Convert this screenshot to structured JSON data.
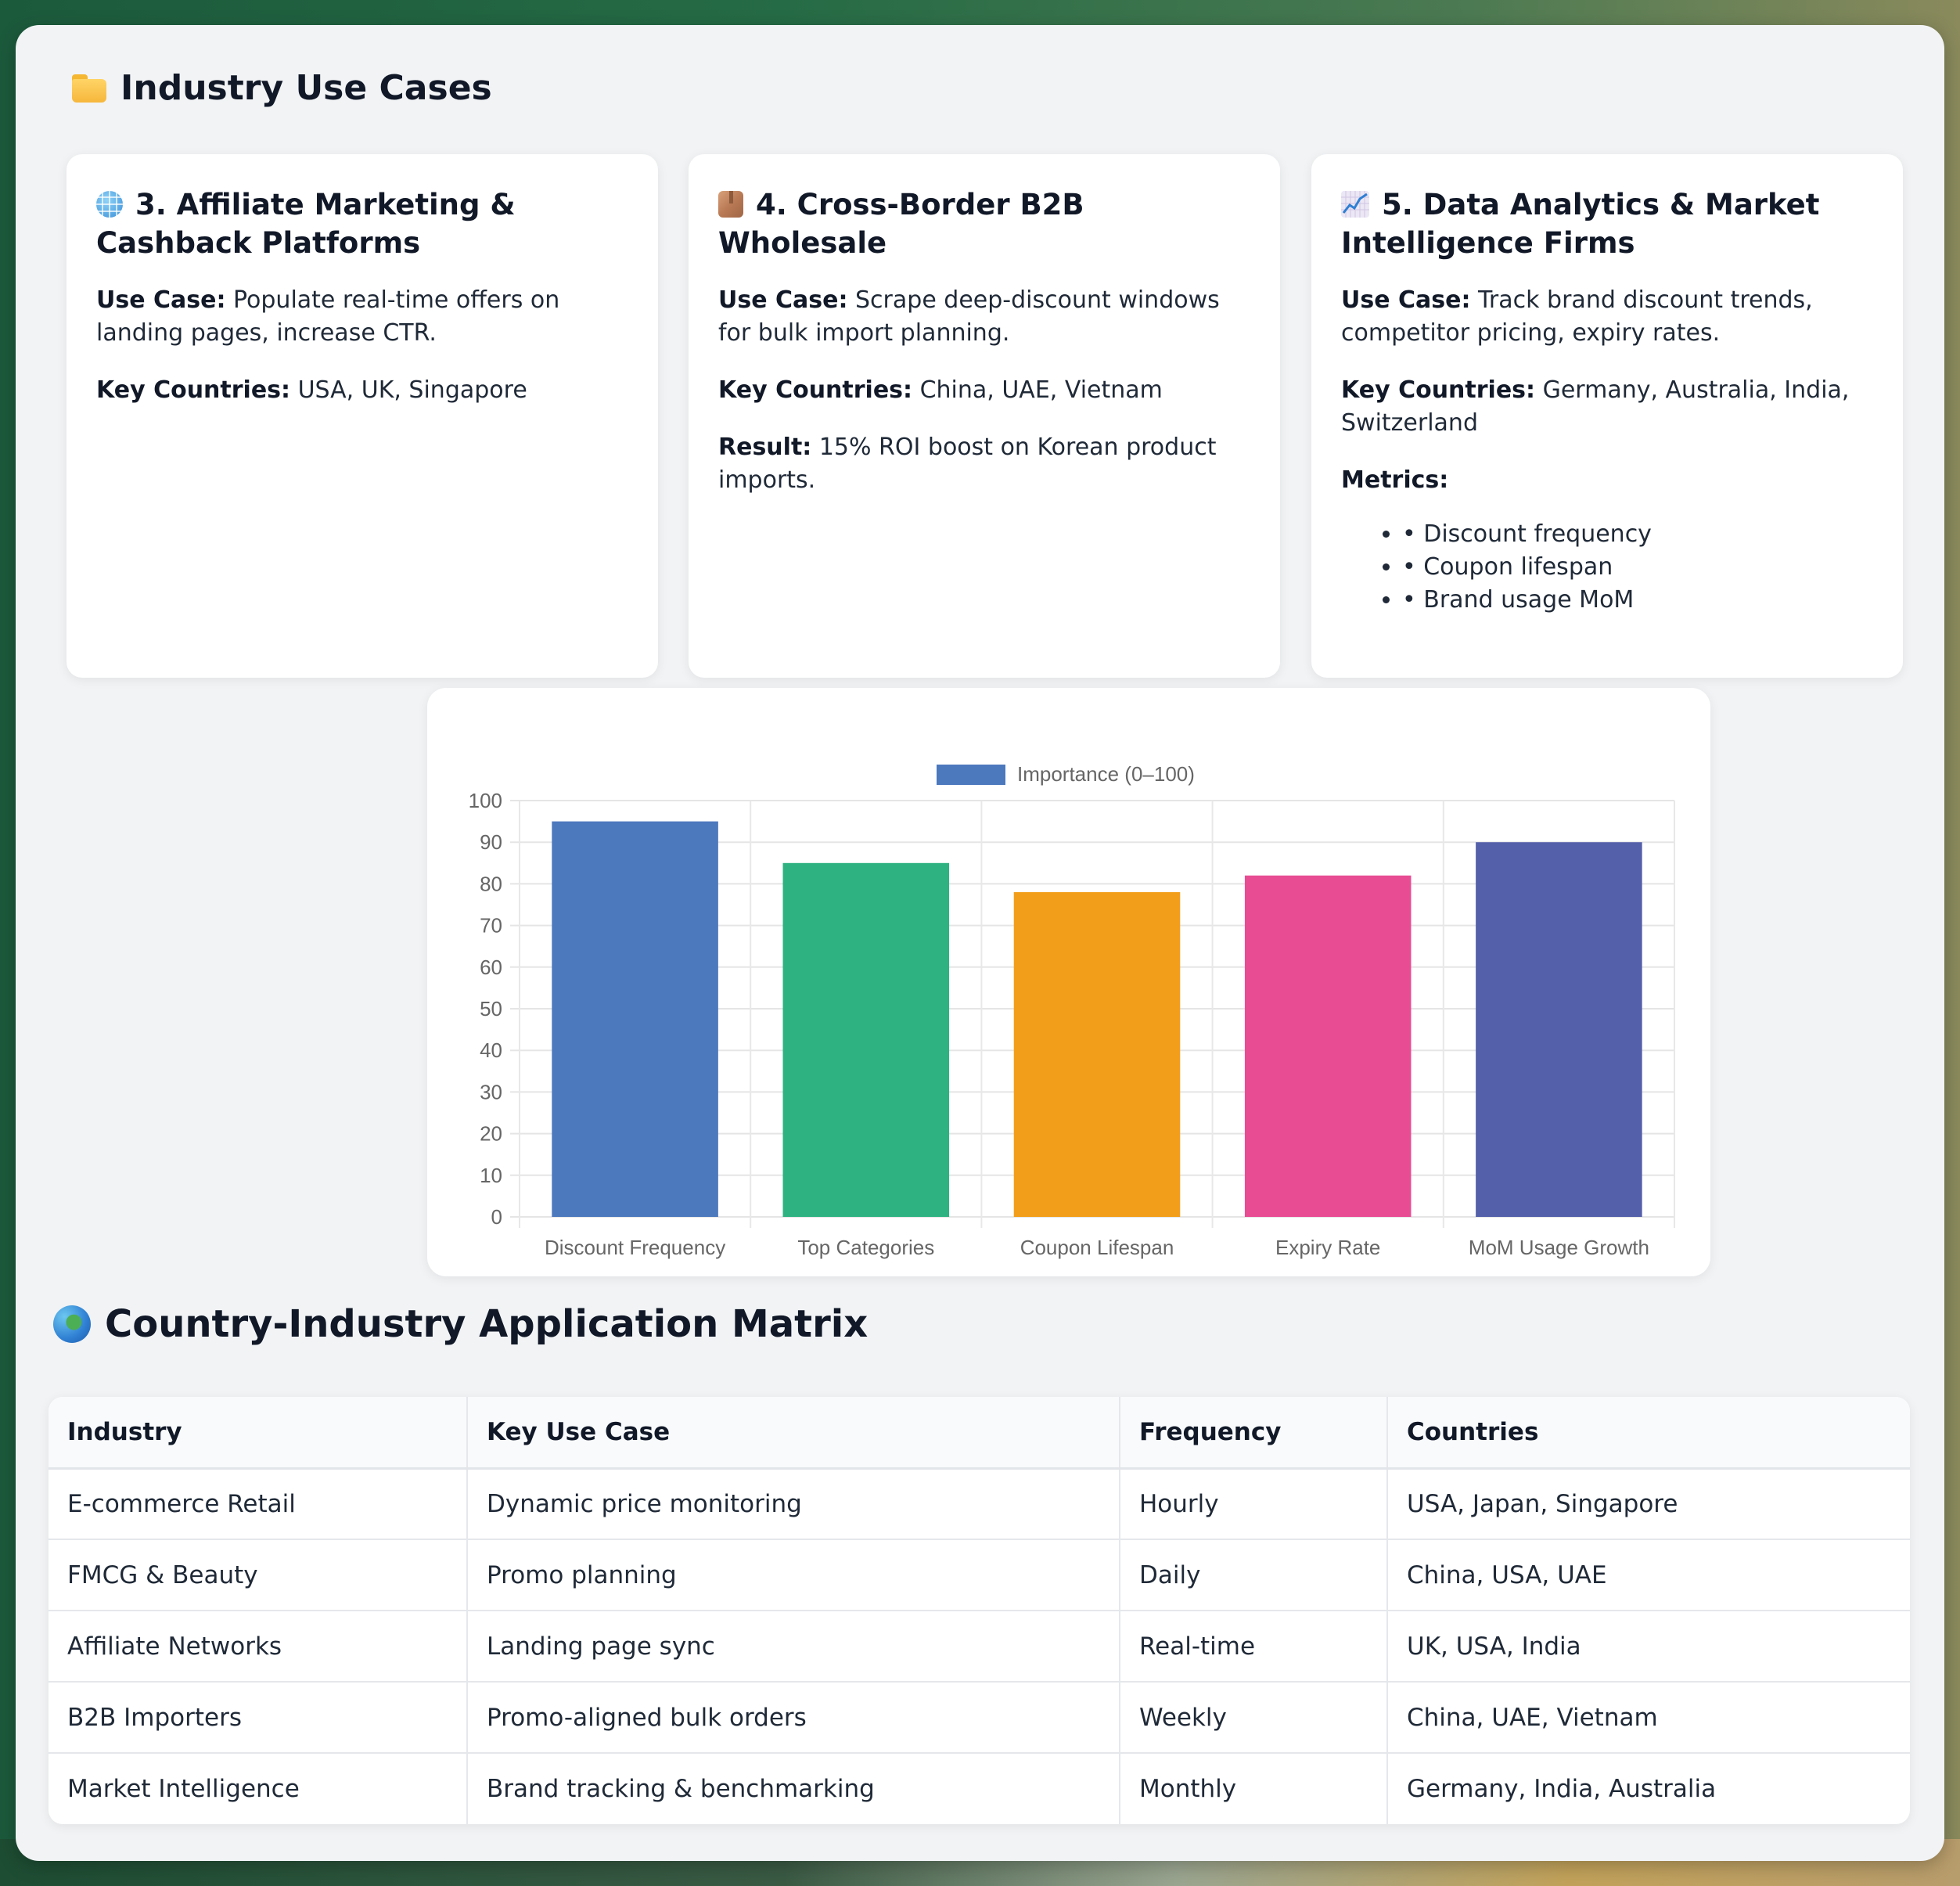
{
  "sections": {
    "use_cases_title": "Industry Use Cases",
    "matrix_title": "Country-Industry Application Matrix"
  },
  "cards": [
    {
      "icon": "globe-with-meridians-icon",
      "title": "3. Affiliate Marketing & Cashback Platforms",
      "use_case_label": "Use Case:",
      "use_case": "Populate real-time offers on landing pages, increase CTR.",
      "countries_label": "Key Countries:",
      "countries": "USA, UK, Singapore"
    },
    {
      "icon": "package-icon",
      "title": "4. Cross-Border B2B Wholesale",
      "use_case_label": "Use Case:",
      "use_case": "Scrape deep-discount windows for bulk import planning.",
      "countries_label": "Key Countries:",
      "countries": "China, UAE, Vietnam",
      "result_label": "Result:",
      "result": "15% ROI boost on Korean product imports."
    },
    {
      "icon": "chart-increasing-icon",
      "title": "5. Data Analytics & Market Intelligence Firms",
      "use_case_label": "Use Case:",
      "use_case": "Track brand discount trends, competitor pricing, expiry rates.",
      "countries_label": "Key Countries:",
      "countries": "Germany, Australia, India, Switzerland",
      "metrics_label": "Metrics:",
      "metrics": [
        "• Discount frequency",
        "• Coupon lifespan",
        "• Brand usage MoM"
      ]
    }
  ],
  "chart_data": {
    "type": "bar",
    "title": "",
    "legend": [
      "Importance (0–100)"
    ],
    "legend_position": "top",
    "categories": [
      "Discount Frequency",
      "Top Categories",
      "Coupon Lifespan",
      "Expiry Rate",
      "MoM Usage Growth"
    ],
    "values": [
      95,
      85,
      78,
      82,
      90
    ],
    "colors": [
      "#4c78bd",
      "#2eb282",
      "#f39e1a",
      "#e84c93",
      "#5560aa"
    ],
    "xlabel": "",
    "ylabel": "",
    "ylim": [
      0,
      100
    ],
    "yticks": [
      0,
      10,
      20,
      30,
      40,
      50,
      60,
      70,
      80,
      90,
      100
    ],
    "grid": true
  },
  "table": {
    "headers": [
      "Industry",
      "Key Use Case",
      "Frequency",
      "Countries"
    ],
    "rows": [
      [
        "E-commerce Retail",
        "Dynamic price monitoring",
        "Hourly",
        "USA, Japan, Singapore"
      ],
      [
        "FMCG & Beauty",
        "Promo planning",
        "Daily",
        "China, USA, UAE"
      ],
      [
        "Affiliate Networks",
        "Landing page sync",
        "Real-time",
        "UK, USA, India"
      ],
      [
        "B2B Importers",
        "Promo-aligned bulk orders",
        "Weekly",
        "China, UAE, Vietnam"
      ],
      [
        "Market Intelligence",
        "Brand tracking & benchmarking",
        "Monthly",
        "Germany, India, Australia"
      ]
    ]
  }
}
